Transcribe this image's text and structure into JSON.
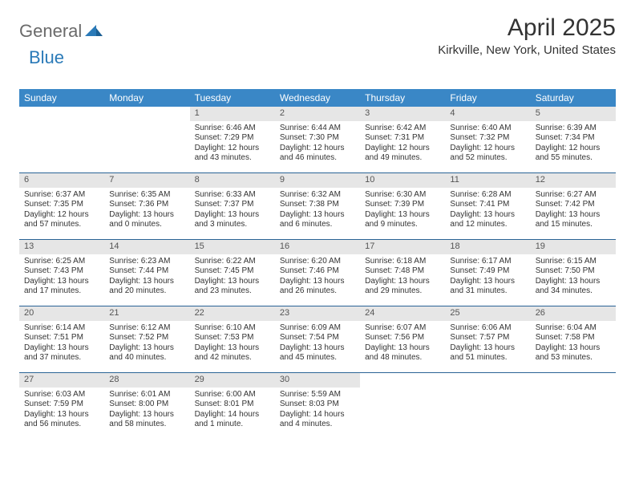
{
  "brand": {
    "part1": "General",
    "part2": "Blue"
  },
  "title": "April 2025",
  "location": "Kirkville, New York, United States",
  "colors": {
    "header_bg": "#3a87c6",
    "header_text": "#ffffff",
    "daynum_bg": "#e6e6e6",
    "week_divider": "#2a6496",
    "brand_gray": "#6a6a6a",
    "brand_blue": "#2a7ab8"
  },
  "dow": [
    "Sunday",
    "Monday",
    "Tuesday",
    "Wednesday",
    "Thursday",
    "Friday",
    "Saturday"
  ],
  "weeks": [
    [
      {
        "n": "",
        "sr": "",
        "ss": "",
        "dl": ""
      },
      {
        "n": "",
        "sr": "",
        "ss": "",
        "dl": ""
      },
      {
        "n": "1",
        "sr": "Sunrise: 6:46 AM",
        "ss": "Sunset: 7:29 PM",
        "dl": "Daylight: 12 hours and 43 minutes."
      },
      {
        "n": "2",
        "sr": "Sunrise: 6:44 AM",
        "ss": "Sunset: 7:30 PM",
        "dl": "Daylight: 12 hours and 46 minutes."
      },
      {
        "n": "3",
        "sr": "Sunrise: 6:42 AM",
        "ss": "Sunset: 7:31 PM",
        "dl": "Daylight: 12 hours and 49 minutes."
      },
      {
        "n": "4",
        "sr": "Sunrise: 6:40 AM",
        "ss": "Sunset: 7:32 PM",
        "dl": "Daylight: 12 hours and 52 minutes."
      },
      {
        "n": "5",
        "sr": "Sunrise: 6:39 AM",
        "ss": "Sunset: 7:34 PM",
        "dl": "Daylight: 12 hours and 55 minutes."
      }
    ],
    [
      {
        "n": "6",
        "sr": "Sunrise: 6:37 AM",
        "ss": "Sunset: 7:35 PM",
        "dl": "Daylight: 12 hours and 57 minutes."
      },
      {
        "n": "7",
        "sr": "Sunrise: 6:35 AM",
        "ss": "Sunset: 7:36 PM",
        "dl": "Daylight: 13 hours and 0 minutes."
      },
      {
        "n": "8",
        "sr": "Sunrise: 6:33 AM",
        "ss": "Sunset: 7:37 PM",
        "dl": "Daylight: 13 hours and 3 minutes."
      },
      {
        "n": "9",
        "sr": "Sunrise: 6:32 AM",
        "ss": "Sunset: 7:38 PM",
        "dl": "Daylight: 13 hours and 6 minutes."
      },
      {
        "n": "10",
        "sr": "Sunrise: 6:30 AM",
        "ss": "Sunset: 7:39 PM",
        "dl": "Daylight: 13 hours and 9 minutes."
      },
      {
        "n": "11",
        "sr": "Sunrise: 6:28 AM",
        "ss": "Sunset: 7:41 PM",
        "dl": "Daylight: 13 hours and 12 minutes."
      },
      {
        "n": "12",
        "sr": "Sunrise: 6:27 AM",
        "ss": "Sunset: 7:42 PM",
        "dl": "Daylight: 13 hours and 15 minutes."
      }
    ],
    [
      {
        "n": "13",
        "sr": "Sunrise: 6:25 AM",
        "ss": "Sunset: 7:43 PM",
        "dl": "Daylight: 13 hours and 17 minutes."
      },
      {
        "n": "14",
        "sr": "Sunrise: 6:23 AM",
        "ss": "Sunset: 7:44 PM",
        "dl": "Daylight: 13 hours and 20 minutes."
      },
      {
        "n": "15",
        "sr": "Sunrise: 6:22 AM",
        "ss": "Sunset: 7:45 PM",
        "dl": "Daylight: 13 hours and 23 minutes."
      },
      {
        "n": "16",
        "sr": "Sunrise: 6:20 AM",
        "ss": "Sunset: 7:46 PM",
        "dl": "Daylight: 13 hours and 26 minutes."
      },
      {
        "n": "17",
        "sr": "Sunrise: 6:18 AM",
        "ss": "Sunset: 7:48 PM",
        "dl": "Daylight: 13 hours and 29 minutes."
      },
      {
        "n": "18",
        "sr": "Sunrise: 6:17 AM",
        "ss": "Sunset: 7:49 PM",
        "dl": "Daylight: 13 hours and 31 minutes."
      },
      {
        "n": "19",
        "sr": "Sunrise: 6:15 AM",
        "ss": "Sunset: 7:50 PM",
        "dl": "Daylight: 13 hours and 34 minutes."
      }
    ],
    [
      {
        "n": "20",
        "sr": "Sunrise: 6:14 AM",
        "ss": "Sunset: 7:51 PM",
        "dl": "Daylight: 13 hours and 37 minutes."
      },
      {
        "n": "21",
        "sr": "Sunrise: 6:12 AM",
        "ss": "Sunset: 7:52 PM",
        "dl": "Daylight: 13 hours and 40 minutes."
      },
      {
        "n": "22",
        "sr": "Sunrise: 6:10 AM",
        "ss": "Sunset: 7:53 PM",
        "dl": "Daylight: 13 hours and 42 minutes."
      },
      {
        "n": "23",
        "sr": "Sunrise: 6:09 AM",
        "ss": "Sunset: 7:54 PM",
        "dl": "Daylight: 13 hours and 45 minutes."
      },
      {
        "n": "24",
        "sr": "Sunrise: 6:07 AM",
        "ss": "Sunset: 7:56 PM",
        "dl": "Daylight: 13 hours and 48 minutes."
      },
      {
        "n": "25",
        "sr": "Sunrise: 6:06 AM",
        "ss": "Sunset: 7:57 PM",
        "dl": "Daylight: 13 hours and 51 minutes."
      },
      {
        "n": "26",
        "sr": "Sunrise: 6:04 AM",
        "ss": "Sunset: 7:58 PM",
        "dl": "Daylight: 13 hours and 53 minutes."
      }
    ],
    [
      {
        "n": "27",
        "sr": "Sunrise: 6:03 AM",
        "ss": "Sunset: 7:59 PM",
        "dl": "Daylight: 13 hours and 56 minutes."
      },
      {
        "n": "28",
        "sr": "Sunrise: 6:01 AM",
        "ss": "Sunset: 8:00 PM",
        "dl": "Daylight: 13 hours and 58 minutes."
      },
      {
        "n": "29",
        "sr": "Sunrise: 6:00 AM",
        "ss": "Sunset: 8:01 PM",
        "dl": "Daylight: 14 hours and 1 minute."
      },
      {
        "n": "30",
        "sr": "Sunrise: 5:59 AM",
        "ss": "Sunset: 8:03 PM",
        "dl": "Daylight: 14 hours and 4 minutes."
      },
      {
        "n": "",
        "sr": "",
        "ss": "",
        "dl": ""
      },
      {
        "n": "",
        "sr": "",
        "ss": "",
        "dl": ""
      },
      {
        "n": "",
        "sr": "",
        "ss": "",
        "dl": ""
      }
    ]
  ]
}
